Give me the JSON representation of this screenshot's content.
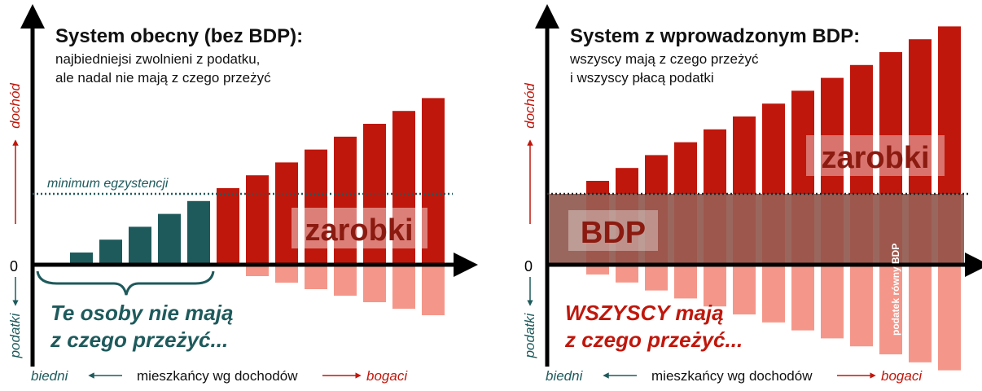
{
  "left": {
    "title": "System obecny (bez BDP):",
    "subtitle": [
      "najbiedniejsi zwolnieni z podatku,",
      "ale nadal nie mają z czego przeżyć"
    ],
    "y_up": "dochód",
    "y_down": "podatki",
    "zero": "0",
    "threshold": "minimum egzystencji",
    "bar_label": "zarobki",
    "message": [
      "Te osoby nie mają",
      "z czego przeżyć..."
    ],
    "x_axis": {
      "left": "biedni",
      "center": "mieszkańcy wg dochodów",
      "right": "bogaci"
    }
  },
  "right": {
    "title": "System z wprowadzonym BDP:",
    "subtitle": [
      "wszyscy mają z czego przeżyć",
      "i wszyscy płacą podatki"
    ],
    "y_up": "dochód",
    "y_down": "podatki",
    "zero": "0",
    "band_label": "BDP",
    "bar_label": "zarobki",
    "tax_note": "podatek równy BDP",
    "message": [
      "WSZYSCY mają",
      "z czego przeżyć..."
    ],
    "x_axis": {
      "left": "biedni",
      "center": "mieszkańcy wg dochodów",
      "right": "bogaci"
    }
  }
}
